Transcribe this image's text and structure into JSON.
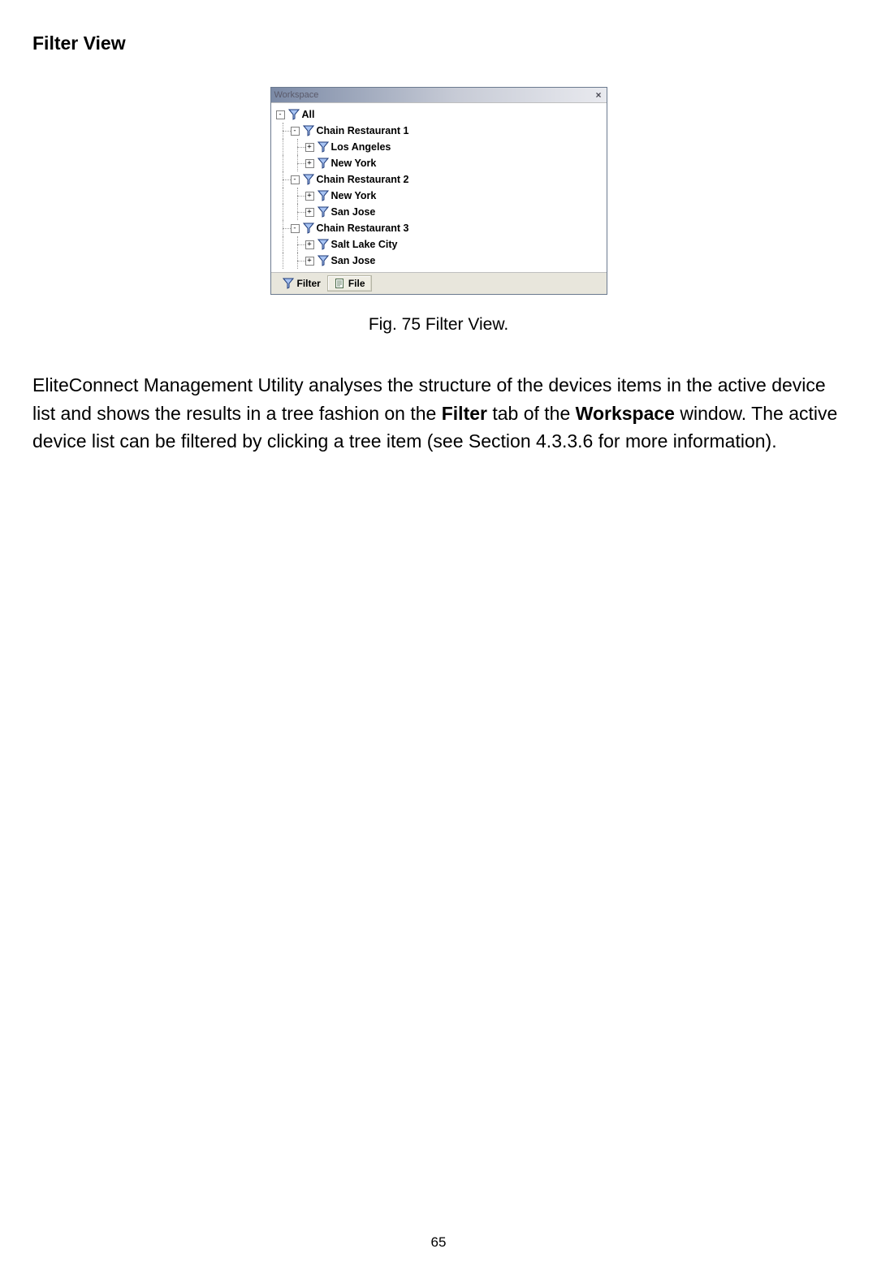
{
  "section_title": "Filter View",
  "caption": "Fig. 75 Filter View.",
  "page_number": "65",
  "body": {
    "pre": "EliteConnect Management Utility analyses the structure of the devices items in the active device list and shows the results in a tree fashion on the ",
    "bold1": "Filter",
    "mid1": " tab of the ",
    "bold2": "Workspace",
    "post": " window. The active device list can be filtered by clicking a tree item (see Section 4.3.3.6 for more information)."
  },
  "window": {
    "title": "Workspace",
    "close": "×",
    "tree": [
      {
        "depth": 0,
        "expander": "-",
        "label": "All"
      },
      {
        "depth": 1,
        "expander": "-",
        "label": "Chain Restaurant 1"
      },
      {
        "depth": 2,
        "expander": "+",
        "label": "Los Angeles"
      },
      {
        "depth": 2,
        "expander": "+",
        "label": "New York"
      },
      {
        "depth": 1,
        "expander": "-",
        "label": "Chain Restaurant 2"
      },
      {
        "depth": 2,
        "expander": "+",
        "label": "New York"
      },
      {
        "depth": 2,
        "expander": "+",
        "label": "San Jose"
      },
      {
        "depth": 1,
        "expander": "-",
        "label": "Chain Restaurant 3"
      },
      {
        "depth": 2,
        "expander": "+",
        "label": "Salt Lake City"
      },
      {
        "depth": 2,
        "expander": "+",
        "label": "San Jose"
      }
    ],
    "tabs": {
      "filter": "Filter",
      "file": "File"
    }
  },
  "icons": {
    "funnel_fill": "#a7c3f2",
    "funnel_stroke": "#1d3a7a",
    "file_stroke": "#4a6a4a",
    "file_fill": "#ffffff"
  },
  "colors": {
    "dotted": "#9a9a9a",
    "title_grad_start": "#7b8aa6",
    "title_grad_end": "#e9eaef",
    "panel_bg": "#e8e6dc"
  }
}
